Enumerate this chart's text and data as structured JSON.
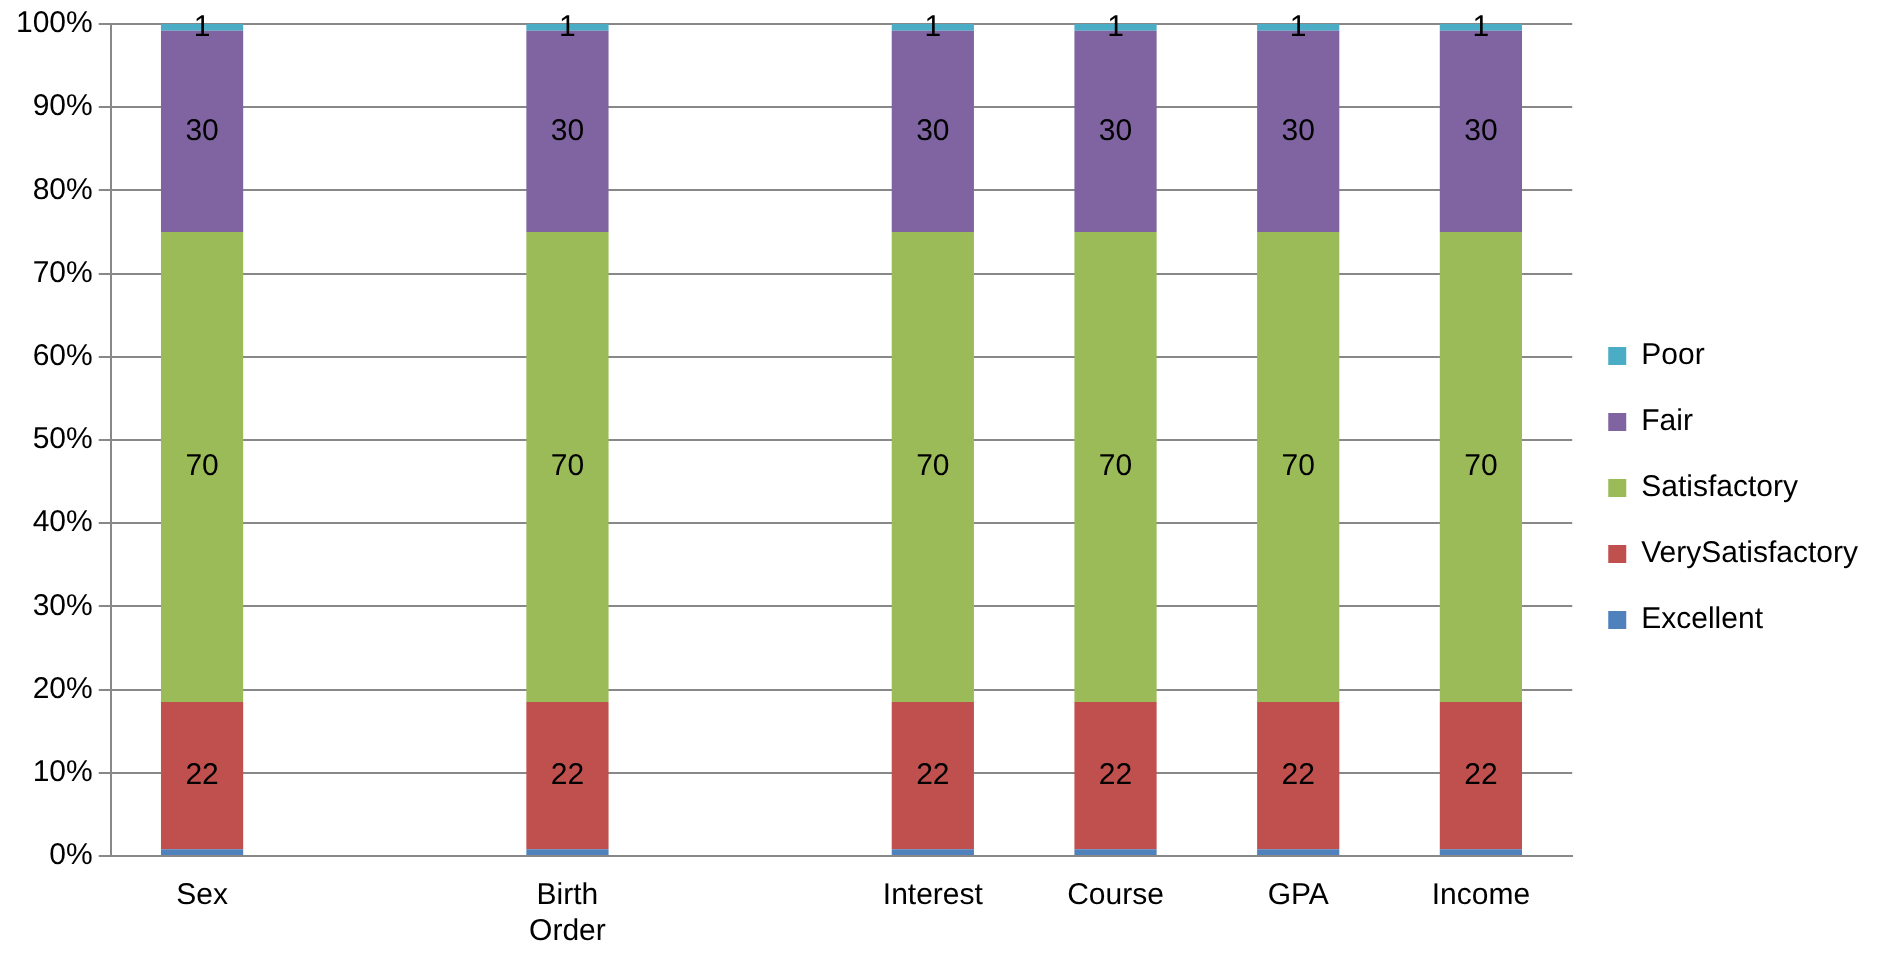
{
  "chart_data": {
    "type": "bar",
    "stacked": true,
    "categories": [
      "Sex",
      null,
      "Birth Order",
      null,
      "Interest",
      "Course",
      "GPA",
      "Income"
    ],
    "ylim": [
      0,
      100
    ],
    "yticks": [
      {
        "value": 0,
        "label": "0%"
      },
      {
        "value": 10,
        "label": "10%"
      },
      {
        "value": 20,
        "label": "20%"
      },
      {
        "value": 30,
        "label": "30%"
      },
      {
        "value": 40,
        "label": "40%"
      },
      {
        "value": 50,
        "label": "50%"
      },
      {
        "value": 60,
        "label": "60%"
      },
      {
        "value": 70,
        "label": "70%"
      },
      {
        "value": 80,
        "label": "80%"
      },
      {
        "value": 90,
        "label": "90%"
      },
      {
        "value": 100,
        "label": "100%"
      }
    ],
    "grid": "y",
    "legend": "right",
    "series": [
      {
        "name": "Excellent",
        "color": "#4f81bd",
        "values": [
          0.8,
          null,
          0.8,
          null,
          0.8,
          0.8,
          0.8,
          0.8
        ]
      },
      {
        "name": "VerySatisfactory",
        "color": "#c0504d",
        "values": [
          17.7,
          null,
          17.7,
          null,
          17.7,
          17.7,
          17.7,
          17.7
        ]
      },
      {
        "name": "Satisfactory",
        "color": "#9bbb59",
        "values": [
          56.5,
          null,
          56.5,
          null,
          56.5,
          56.5,
          56.5,
          56.5
        ]
      },
      {
        "name": "Fair",
        "color": "#8064a2",
        "values": [
          24.2,
          null,
          24.2,
          null,
          24.2,
          24.2,
          24.2,
          24.2
        ]
      },
      {
        "name": "Poor",
        "color": "#4bacc6",
        "values": [
          0.8,
          null,
          0.8,
          null,
          0.8,
          0.8,
          0.8,
          0.8
        ]
      }
    ],
    "annotations": [
      "1",
      "30",
      "70",
      "22",
      "1",
      "30",
      "70",
      "22",
      "1",
      "30",
      "70",
      "22",
      "1",
      "30",
      "70",
      "22",
      "1",
      "30",
      "70",
      "22",
      "1",
      "30",
      "70",
      "22"
    ]
  }
}
